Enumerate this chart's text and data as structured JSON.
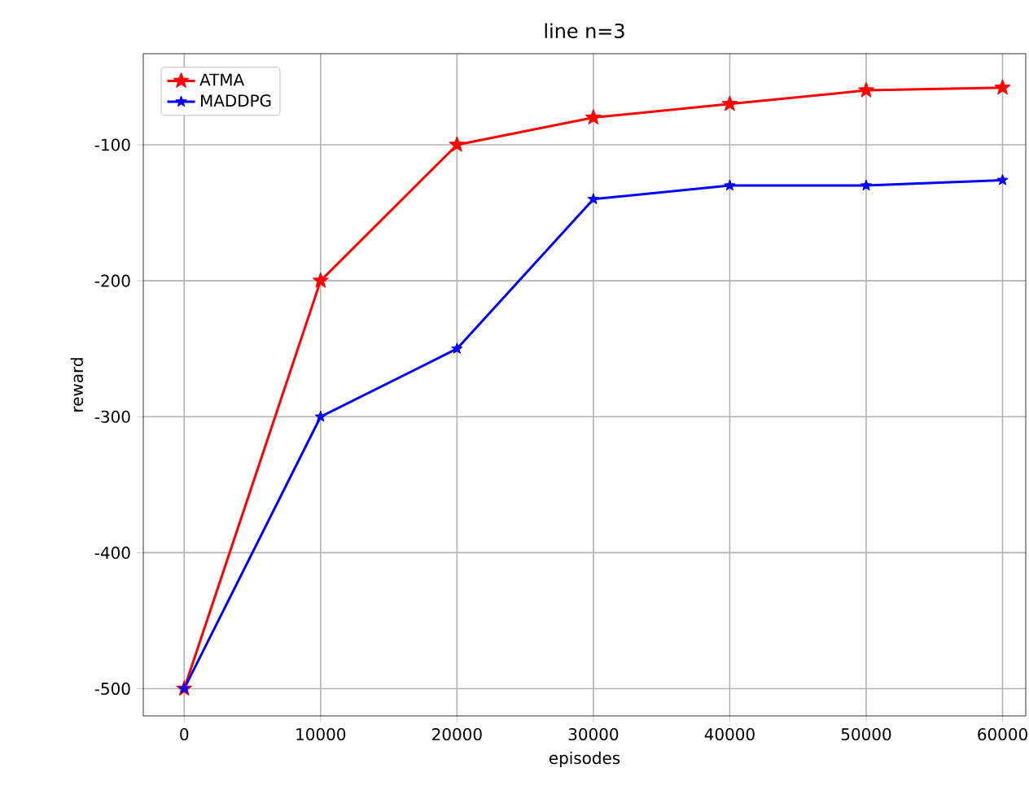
{
  "chart_data": {
    "type": "line",
    "title": "line n=3",
    "xlabel": "episodes",
    "ylabel": "reward",
    "x": [
      0,
      10000,
      20000,
      30000,
      40000,
      50000,
      60000
    ],
    "series": [
      {
        "name": "ATMA",
        "color": "#ff0000",
        "values": [
          -500,
          -200,
          -100,
          -80,
          -70,
          -60,
          -58
        ]
      },
      {
        "name": "MADDPG",
        "color": "#0000ff",
        "values": [
          -500,
          -300,
          -250,
          -140,
          -130,
          -130,
          -126
        ]
      }
    ],
    "xlim": [
      -3000,
      61700
    ],
    "ylim": [
      -520,
      -33
    ],
    "xticks": [
      0,
      10000,
      20000,
      30000,
      40000,
      50000,
      60000
    ],
    "yticks": [
      -500,
      -400,
      -300,
      -200,
      -100
    ],
    "grid": true,
    "legend": "top left",
    "marker": "star",
    "line_style": "solid"
  }
}
